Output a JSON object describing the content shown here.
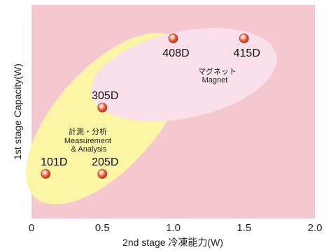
{
  "chart_data": {
    "type": "scatter",
    "xlabel": "2nd stage 冷凍能力(W)",
    "ylabel": "1st stage Capacity(W)",
    "xlim": [
      0,
      2.0
    ],
    "x_ticks": [
      "0",
      "0.5",
      "1.0",
      "1.5",
      "2.0"
    ],
    "y_ticks_shown": false,
    "grid": false,
    "points": [
      {
        "label": "101D",
        "x": 0.1
      },
      {
        "label": "205D",
        "x": 0.5
      },
      {
        "label": "305D",
        "x": 0.5
      },
      {
        "label": "408D",
        "x": 1.0
      },
      {
        "label": "415D",
        "x": 1.5
      }
    ],
    "regions": [
      {
        "lines": [
          "計測・分析",
          "Measurement",
          "& Analysis"
        ],
        "color": "#fbf6a6"
      },
      {
        "lines": [
          "マグネット",
          "Magnet"
        ],
        "color": "#f9e0ea"
      }
    ],
    "colors": {
      "plot_background": "#f5c7cf",
      "point_fill": "#e8452c"
    }
  }
}
